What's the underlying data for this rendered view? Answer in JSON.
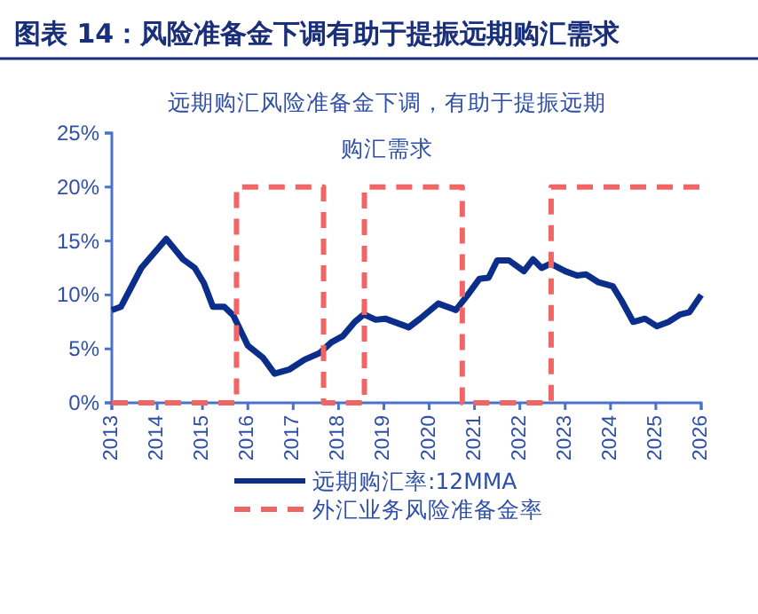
{
  "chart_data": {
    "type": "line",
    "title": "图表 14：风险准备金下调有助于提振远期购汇需求",
    "annotations": [
      "远期购汇风险准备金下调，有助于提振远期购汇需求"
    ],
    "xlim": [
      2013,
      2026
    ],
    "xticks": [
      2013,
      2014,
      2015,
      2016,
      2017,
      2018,
      2019,
      2020,
      2021,
      2022,
      2023,
      2024,
      2025,
      2026
    ],
    "ylim": [
      0,
      25
    ],
    "yticks": [
      {
        "value": 0,
        "label": "0%"
      },
      {
        "value": 5,
        "label": "5%"
      },
      {
        "value": 10,
        "label": "10%"
      },
      {
        "value": 15,
        "label": "15%"
      },
      {
        "value": 20,
        "label": "20%"
      },
      {
        "value": 25,
        "label": "25%"
      }
    ],
    "grid": false,
    "legend": "bottom",
    "marker": "none",
    "series": [
      {
        "name": "远期购汇率:12MMA",
        "color": "#0a2e8a",
        "type": "line",
        "line_style": "solid",
        "x": [
          2013.0,
          2013.2,
          2013.65,
          2014.2,
          2014.57,
          2014.83,
          2015.03,
          2015.23,
          2015.48,
          2015.68,
          2016.0,
          2016.33,
          2016.59,
          2016.92,
          2017.25,
          2017.58,
          2017.84,
          2018.1,
          2018.36,
          2018.56,
          2018.82,
          2019.03,
          2019.55,
          2019.8,
          2020.2,
          2020.59,
          2020.85,
          2021.11,
          2021.31,
          2021.5,
          2021.76,
          2022.09,
          2022.29,
          2022.48,
          2022.68,
          2023.0,
          2023.26,
          2023.46,
          2023.72,
          2024.05,
          2024.24,
          2024.5,
          2024.76,
          2025.02,
          2025.28,
          2025.54,
          2025.74,
          2026.0
        ],
        "values": [
          8.6,
          8.9,
          12.5,
          15.2,
          13.3,
          12.5,
          11.1,
          8.9,
          8.9,
          8.1,
          5.3,
          4.2,
          2.7,
          3.1,
          4.0,
          4.6,
          5.6,
          6.2,
          7.5,
          8.2,
          7.7,
          7.8,
          7.0,
          7.8,
          9.2,
          8.6,
          10.0,
          11.5,
          11.6,
          13.2,
          13.2,
          12.2,
          13.3,
          12.5,
          12.9,
          12.2,
          11.8,
          11.9,
          11.2,
          10.8,
          9.5,
          7.5,
          7.8,
          7.1,
          7.5,
          8.2,
          8.4,
          10.0
        ]
      },
      {
        "name": "外汇业务风险准备金率",
        "color": "#f06565",
        "type": "step",
        "line_style": "dashed",
        "x": [
          2013,
          2015.75,
          2017.67,
          2018.57,
          2020.73,
          2022.69,
          2026
        ],
        "values": [
          0,
          20,
          0,
          20,
          0,
          20,
          20
        ]
      }
    ]
  }
}
